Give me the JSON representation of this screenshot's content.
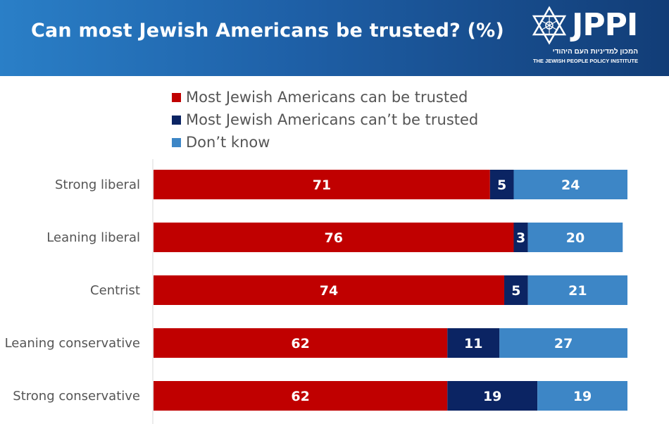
{
  "header": {
    "title": "Can most Jewish Americans be trusted? (%)",
    "logo": {
      "name": "JPPI",
      "hebrew": "המכון למדיניות העם היהודי",
      "english": "THE JEWISH PEOPLE POLICY INSTITUTE"
    }
  },
  "colors": {
    "header_start": "#2a7fc7",
    "header_end": "#123d77",
    "trusted": "#c00000",
    "not_trusted": "#0b2463",
    "dont_know": "#3d86c6"
  },
  "chart_data": {
    "type": "bar",
    "orientation": "horizontal-stacked",
    "title": "Can most Jewish Americans be trusted? (%)",
    "legend_position": "top",
    "xlim": [
      0,
      100
    ],
    "grid": false,
    "categories": [
      "Strong liberal",
      "Leaning liberal",
      "Centrist",
      "Leaning conservative",
      "Strong conservative"
    ],
    "series": [
      {
        "name": "Most Jewish Americans can be trusted",
        "color": "#c00000",
        "values": [
          71,
          76,
          74,
          62,
          62
        ]
      },
      {
        "name": "Most Jewish Americans can’t be trusted",
        "color": "#0b2463",
        "values": [
          5,
          3,
          5,
          11,
          19
        ]
      },
      {
        "name": "Don’t know",
        "color": "#3d86c6",
        "values": [
          24,
          20,
          21,
          27,
          19
        ]
      }
    ]
  }
}
